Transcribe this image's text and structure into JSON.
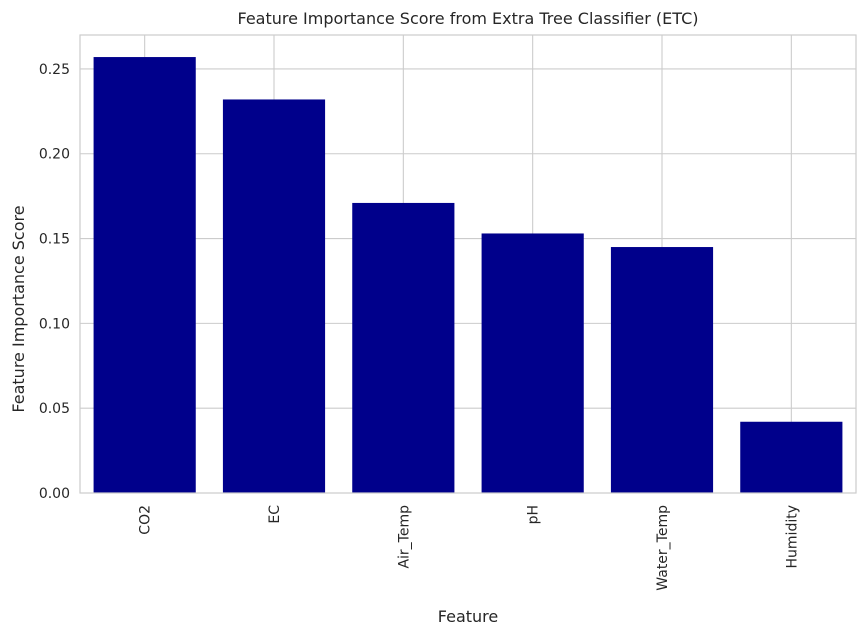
{
  "chart_data": {
    "type": "bar",
    "title": "Feature Importance Score from Extra Tree Classifier (ETC)",
    "xlabel": "Feature",
    "ylabel": "Feature Importance Score",
    "categories": [
      "CO2",
      "EC",
      "Air_Temp",
      "pH",
      "Water_Temp",
      "Humidity"
    ],
    "values": [
      0.257,
      0.232,
      0.171,
      0.153,
      0.145,
      0.042
    ],
    "ylim": [
      0,
      0.27
    ],
    "yticks": [
      0.0,
      0.05,
      0.1,
      0.15,
      0.2,
      0.25
    ],
    "ytick_labels": [
      "0.00",
      "0.05",
      "0.10",
      "0.15",
      "0.20",
      "0.25"
    ],
    "bar_color": "#00008b",
    "grid": true,
    "xtick_rotation": "vertical"
  }
}
